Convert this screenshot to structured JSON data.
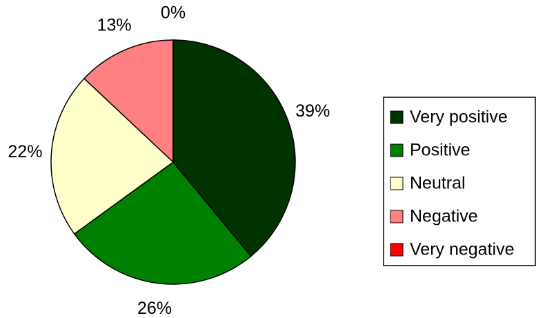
{
  "chart_data": {
    "type": "pie",
    "categories": [
      "Very positive",
      "Positive",
      "Neutral",
      "Negative",
      "Very negative"
    ],
    "values": [
      39,
      26,
      22,
      13,
      0
    ],
    "value_labels": [
      "39%",
      "26%",
      "22%",
      "13%",
      "0%"
    ],
    "colors": [
      "#003300",
      "#008000",
      "#ffffcc",
      "#ff8080",
      "#ff0000"
    ],
    "legend": "right"
  }
}
